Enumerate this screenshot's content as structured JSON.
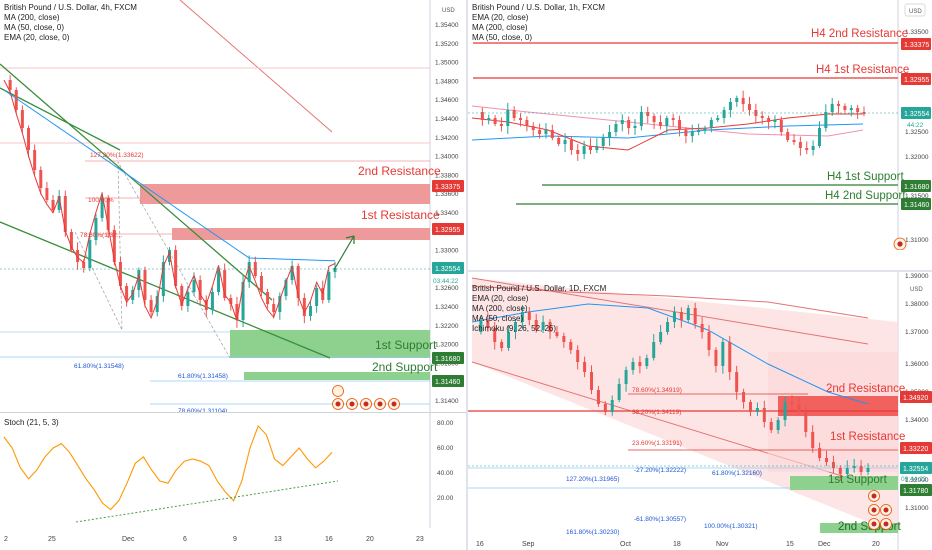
{
  "panels": {
    "h4": {
      "title": "British Pound / U.S. Dollar, 4h, FXCM",
      "indicators": [
        "MA (200, close)",
        "MA (50, close, 0)",
        "EMA (20, close, 0)"
      ],
      "price_ticks": [
        "1.35400",
        "1.35200",
        "1.35000",
        "1.34800",
        "1.34600",
        "1.34400",
        "1.34200",
        "1.34000",
        "1.33800",
        "1.33600",
        "1.33400",
        "1.33200",
        "1.33000",
        "1.32800",
        "1.32600",
        "1.32400",
        "1.32200",
        "1.32000",
        "1.31800",
        "1.31600",
        "1.31400",
        "1.31200"
      ],
      "date_ticks": [
        "2",
        "25",
        "Dec",
        "6",
        "9",
        "13",
        "16",
        "20",
        "23"
      ],
      "levels": [
        {
          "label": "2nd Resistance",
          "price": "1.33375"
        },
        {
          "label": "1st Resistance",
          "price": "1.32955"
        },
        {
          "label": "1st Support",
          "price": "1.31680"
        },
        {
          "label": "2nd Support",
          "price": "1.31460"
        }
      ],
      "current_price": "1.32554",
      "countdown": "03:44:22",
      "fib_labels": [
        "127.20%(1.33622)",
        "100.00%",
        "78.60%(1.32...",
        "61.80%(1.31548)",
        "61.80%(1.31458)",
        "78.60%(1.31104)"
      ],
      "unit": "USD"
    },
    "stoch": {
      "title": "Stoch (21, 5, 3)",
      "ticks": [
        "80.00",
        "60.00",
        "40.00",
        "20.00"
      ]
    },
    "h1": {
      "title": "British Pound / U.S. Dollar, 1h, FXCM",
      "indicators": [
        "EMA (20, close)",
        "MA (200, close)",
        "MA (50, close, 0)"
      ],
      "price_ticks": [
        "1.33500",
        "1.33000",
        "1.32500",
        "1.32000",
        "1.31500",
        "1.31000"
      ],
      "date_ticks": [
        "15:00",
        "14",
        "12:00",
        "15",
        "12:00",
        "16",
        "12:00"
      ],
      "levels": [
        {
          "label": "H4 2nd Resistance",
          "price": "1.33375"
        },
        {
          "label": "H4 1st Resistance",
          "price": "1.32955"
        },
        {
          "label": "H4 1st Support",
          "price": "1.31680"
        },
        {
          "label": "H4 2nd Support",
          "price": "1.31460"
        }
      ],
      "current_price": "1.32554",
      "countdown": "44:22",
      "unit": "USD"
    },
    "d1": {
      "title": "British Pound / U.S. Dollar, 1D, FXCM",
      "indicators": [
        "EMA (20, close)",
        "MA (200, close)",
        "MA (50, close)",
        "Ichimoku (9, 26, 52, 26)"
      ],
      "price_ticks": [
        "1.39000",
        "1.38000",
        "1.37000",
        "1.36000",
        "1.35000",
        "1.34000",
        "1.33000",
        "1.32000",
        "1.31000"
      ],
      "date_ticks": [
        "16",
        "Sep",
        "Oct",
        "18",
        "Nov",
        "15",
        "Dec",
        "20"
      ],
      "levels": [
        {
          "label": "2nd Resistance",
          "price": "1.34920"
        },
        {
          "label": "1st Resistance",
          "price": "1.33220"
        },
        {
          "label": "1st Support",
          "price": "1.31780"
        },
        {
          "label": "2nd Support",
          "price": ""
        }
      ],
      "current_price": "1.32554",
      "countdown": "09:44:22",
      "fib_labels": [
        "78.60%(1.34919)",
        "38.20%(1.34119)",
        "23.60%(1.33191)",
        "-27.20%(1.32222)",
        "61.80%(1.32160)",
        "127.20%(1.31965)",
        "-61.80%(1.30557)",
        "100.00%(1.30321)",
        "161.80%(1.30230)"
      ],
      "unit": "USD"
    }
  },
  "colors": {
    "bull": "#26a69a",
    "bear": "#ef5350",
    "resistance": "#e53935",
    "support": "#2e7d32",
    "support_zone": "#66bb6a",
    "resistance_zone": "#ef5350",
    "fib_blue": "#1e56d6",
    "stoch_line": "#ff9800",
    "ma_blue": "#2196f3"
  }
}
